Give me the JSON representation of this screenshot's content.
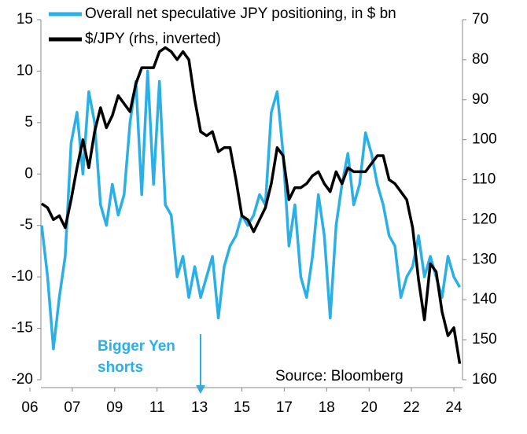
{
  "chart_data": {
    "type": "line",
    "x": [
      2006.5,
      2006.75,
      2007,
      2007.25,
      2007.5,
      2007.75,
      2008,
      2008.25,
      2008.5,
      2008.75,
      2009,
      2009.25,
      2009.5,
      2009.75,
      2010,
      2010.25,
      2010.5,
      2010.75,
      2011,
      2011.25,
      2011.5,
      2011.75,
      2012,
      2012.25,
      2012.5,
      2012.75,
      2013,
      2013.25,
      2013.5,
      2013.75,
      2014,
      2014.25,
      2014.5,
      2014.75,
      2015,
      2015.25,
      2015.5,
      2015.75,
      2016,
      2016.25,
      2016.5,
      2016.75,
      2017,
      2017.25,
      2017.5,
      2017.75,
      2018,
      2018.25,
      2018.5,
      2018.75,
      2019,
      2019.25,
      2019.5,
      2019.75,
      2020,
      2020.25,
      2020.5,
      2020.75,
      2021,
      2021.25,
      2021.5,
      2021.75,
      2022,
      2022.25,
      2022.5,
      2022.75,
      2023,
      2023.25,
      2023.5,
      2023.75,
      2024,
      2024.25
    ],
    "series": [
      {
        "name": "Overall net speculative JPY positioning, in $ bn",
        "color": "#2ab0e6",
        "values": [
          -5,
          -10,
          -17,
          -12,
          -8,
          3,
          6,
          0,
          8,
          5,
          -3,
          -5,
          -1,
          -4,
          -2,
          5,
          9,
          -2,
          10,
          -1,
          9,
          -3,
          -4,
          -10,
          -8,
          -12,
          -9,
          -12,
          -10,
          -8,
          -14,
          -9,
          -7,
          -6,
          -4,
          -5,
          -4,
          -2,
          -3,
          6,
          8,
          2,
          -7,
          -3,
          -10,
          -12,
          -8,
          -2,
          -6,
          -14,
          -5,
          -1,
          2,
          -3,
          -1,
          4,
          2,
          -1,
          -3,
          -6,
          -7,
          -12,
          -10,
          -9,
          -6,
          -10,
          -8,
          -10,
          -12,
          -8,
          -10,
          -11
        ]
      },
      {
        "name": "$/JPY (rhs, inverted)",
        "color": "#000000",
        "axis": "y2",
        "values": [
          116,
          117,
          120,
          119,
          122,
          115,
          107,
          100,
          107,
          98,
          92,
          97,
          94,
          89,
          91,
          93,
          86,
          82,
          82,
          82,
          78,
          77,
          78,
          80,
          78,
          80,
          90,
          98,
          99,
          98,
          103,
          102,
          102,
          110,
          119,
          120,
          123,
          120,
          117,
          111,
          102,
          104,
          115,
          112,
          112,
          111,
          109,
          108,
          111,
          113,
          108,
          111,
          107,
          108,
          108,
          108,
          106,
          104,
          104,
          110,
          111,
          113,
          115,
          122,
          135,
          145,
          131,
          133,
          143,
          149,
          147,
          156
        ]
      }
    ],
    "xlim": [
      2006,
      2024
    ],
    "xticks": [
      {
        "value": 2006,
        "label": "06"
      },
      {
        "value": 2007.8,
        "label": "07"
      },
      {
        "value": 2009.6,
        "label": "09"
      },
      {
        "value": 2011.4,
        "label": "11"
      },
      {
        "value": 2013.2,
        "label": "13"
      },
      {
        "value": 2015,
        "label": "15"
      },
      {
        "value": 2016.8,
        "label": "17"
      },
      {
        "value": 2018.6,
        "label": "18"
      },
      {
        "value": 2020.4,
        "label": "20"
      },
      {
        "value": 2022.2,
        "label": "22"
      },
      {
        "value": 2024,
        "label": "24"
      }
    ],
    "ylim": [
      -20,
      15
    ],
    "yticks": [
      -20,
      -15,
      -10,
      -5,
      0,
      5,
      10,
      15
    ],
    "y2lim": [
      70,
      160
    ],
    "y2ticks": [
      70,
      80,
      90,
      100,
      110,
      120,
      130,
      140,
      150,
      160
    ],
    "y2_inverted": true,
    "legend": "top-left",
    "annotation": [
      "Bigger Yen",
      "shorts"
    ],
    "source": "Source: Bloomberg"
  }
}
